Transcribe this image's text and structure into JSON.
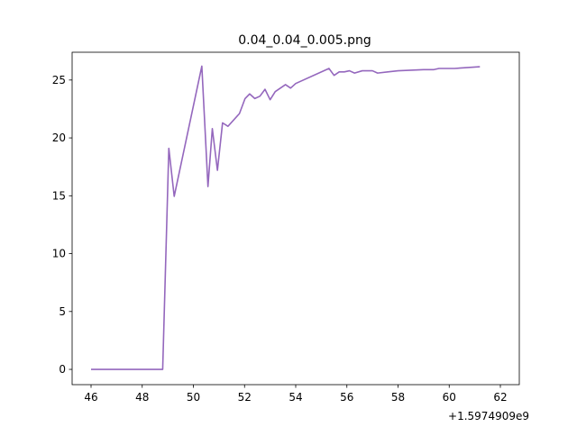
{
  "chart_data": {
    "type": "line",
    "title": "0.04_0.04_0.005.png",
    "x_offset_label": "+1.5974909e9",
    "x": [
      46,
      48.8,
      49.04,
      49.25,
      50.33,
      50.57,
      50.74,
      50.94,
      51.14,
      51.35,
      51.8,
      52.02,
      52.2,
      52.4,
      52.6,
      52.8,
      53.0,
      53.2,
      53.6,
      53.8,
      54.0,
      55.3,
      55.5,
      55.7,
      55.9,
      56.1,
      56.3,
      56.6,
      57.0,
      57.2,
      57.6,
      58.0,
      59.0,
      59.4,
      59.6,
      60.0,
      60.2,
      61.2
    ],
    "values": [
      0,
      0,
      19.1,
      14.95,
      26.2,
      15.8,
      20.8,
      17.2,
      21.3,
      21.0,
      22.1,
      23.4,
      23.8,
      23.4,
      23.6,
      24.2,
      23.3,
      24.0,
      24.6,
      24.3,
      24.7,
      26.0,
      25.4,
      25.7,
      25.7,
      25.8,
      25.6,
      25.8,
      25.8,
      25.6,
      25.7,
      25.8,
      25.9,
      25.9,
      26.0,
      26.0,
      26.0,
      26.15
    ],
    "color": "#9467bd",
    "xlim": [
      45.26,
      62.74
    ],
    "ylim": [
      -1.32,
      27.4
    ],
    "xticks": [
      46,
      48,
      50,
      52,
      54,
      56,
      58,
      60,
      62
    ],
    "yticks": [
      0,
      5,
      10,
      15,
      20,
      25
    ],
    "grid": false
  }
}
